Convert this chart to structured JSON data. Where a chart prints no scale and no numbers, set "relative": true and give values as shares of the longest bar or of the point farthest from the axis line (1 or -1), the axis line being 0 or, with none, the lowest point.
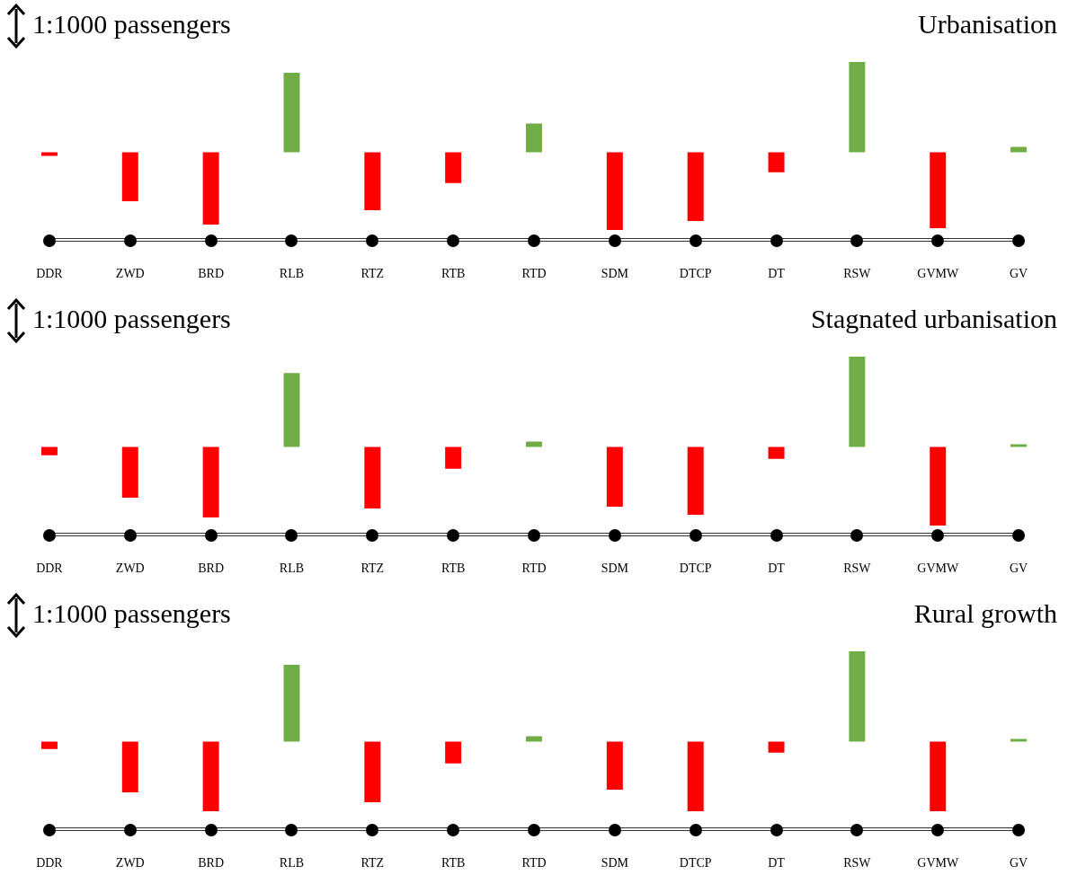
{
  "chart_data": [
    {
      "type": "bar",
      "title": "Urbanisation",
      "annotations": [
        "1:1000 passengers"
      ],
      "relative": true,
      "stacked": true,
      "tick_labels": "x",
      "categories": [
        "DDR",
        "ZWD",
        "BRD",
        "RLB",
        "RTZ",
        "RTB",
        "RTD",
        "SDM",
        "DTCP",
        "DT",
        "RSW",
        "GVMW",
        "GV"
      ],
      "series": [
        {
          "color": "#70ad47",
          "values": [
            null,
            null,
            null,
            0.88,
            null,
            null,
            0.32,
            null,
            null,
            null,
            1,
            null,
            0.06
          ]
        },
        {
          "color": "#ff0000",
          "values": [
            -0.04,
            -0.54,
            -0.8,
            null,
            -0.64,
            -0.34,
            null,
            -0.86,
            -0.76,
            -0.22,
            null,
            -0.84,
            null
          ]
        }
      ]
    },
    {
      "type": "bar",
      "title": "Stagnated urbanisation",
      "annotations": [
        "1:1000 passengers"
      ],
      "relative": true,
      "stacked": true,
      "tick_labels": "x",
      "categories": [
        "DDR",
        "ZWD",
        "BRD",
        "RLB",
        "RTZ",
        "RTB",
        "RTD",
        "SDM",
        "DTCP",
        "DT",
        "RSW",
        "GVMW",
        "GV"
      ],
      "series": [
        {
          "color": "#70ad47",
          "values": [
            null,
            null,
            null,
            0.82,
            null,
            null,
            0.06,
            null,
            null,
            null,
            1,
            null,
            0.03
          ]
        },
        {
          "color": "#ff0000",
          "values": [
            -0.09,
            -0.56,
            -0.78,
            null,
            -0.68,
            -0.24,
            null,
            -0.66,
            -0.75,
            -0.13,
            null,
            -0.87,
            null
          ]
        }
      ]
    },
    {
      "type": "bar",
      "title": "Rural growth",
      "annotations": [
        "1:1000 passengers"
      ],
      "relative": true,
      "stacked": true,
      "tick_labels": "x",
      "categories": [
        "DDR",
        "ZWD",
        "BRD",
        "RLB",
        "RTZ",
        "RTB",
        "RTD",
        "SDM",
        "DTCP",
        "DT",
        "RSW",
        "GVMW",
        "GV"
      ],
      "series": [
        {
          "color": "#70ad47",
          "values": [
            null,
            null,
            null,
            0.85,
            null,
            null,
            0.06,
            null,
            null,
            null,
            1,
            null,
            0.03
          ]
        },
        {
          "color": "#ff0000",
          "values": [
            -0.08,
            -0.56,
            -0.77,
            null,
            -0.67,
            -0.24,
            null,
            -0.53,
            -0.77,
            -0.12,
            null,
            -0.77,
            null
          ]
        }
      ]
    }
  ]
}
